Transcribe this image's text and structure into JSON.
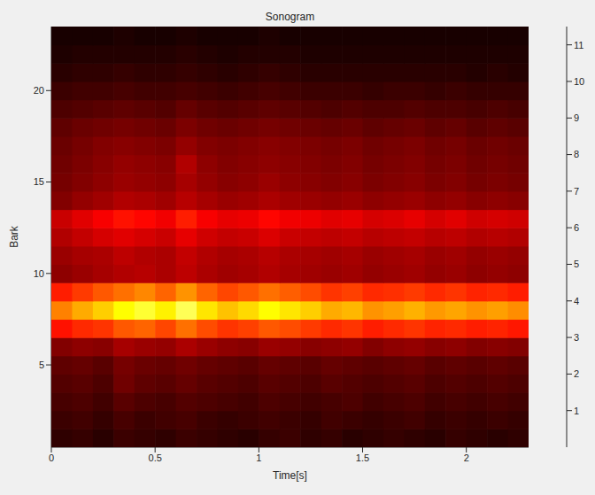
{
  "chart_data": {
    "type": "heatmap",
    "title": "Sonogram",
    "x_label": "Time[s]",
    "y_label": "Bark",
    "xlim": [
      0,
      2.3
    ],
    "xticks": [
      0,
      0.5,
      1,
      1.5,
      2
    ],
    "ylim": [
      0.5,
      23.5
    ],
    "yticks": [
      5,
      10,
      15,
      20
    ],
    "grid": false,
    "colorbar_lim": [
      0,
      11.5
    ],
    "colorbar_ticks": [
      1,
      2,
      3,
      4,
      5,
      6,
      7,
      8,
      9,
      10,
      11
    ],
    "x": [
      0.05,
      0.15,
      0.25,
      0.35,
      0.45,
      0.55,
      0.65,
      0.75,
      0.85,
      0.95,
      1.05,
      1.15,
      1.25,
      1.35,
      1.45,
      1.55,
      1.65,
      1.75,
      1.85,
      1.95,
      2.05,
      2.15,
      2.25
    ],
    "y": [
      1,
      2,
      3,
      4,
      5,
      6,
      7,
      8,
      9,
      10,
      11,
      12,
      13,
      14,
      15,
      16,
      17,
      18,
      19,
      20,
      21,
      22,
      23
    ],
    "z": [
      [
        0.8,
        0.9,
        0.7,
        1.0,
        0.9,
        0.8,
        1.0,
        0.9,
        0.8,
        0.7,
        0.9,
        1.0,
        0.8,
        0.9,
        0.7,
        0.8,
        0.9,
        0.8,
        0.7,
        0.9,
        0.8,
        0.7,
        0.8
      ],
      [
        1.0,
        1.1,
        0.9,
        1.2,
        1.0,
        1.1,
        1.2,
        1.0,
        0.9,
        1.0,
        1.1,
        1.0,
        0.9,
        1.1,
        1.0,
        0.9,
        1.0,
        1.1,
        0.9,
        1.0,
        0.9,
        1.0,
        0.9
      ],
      [
        1.2,
        1.3,
        1.1,
        1.5,
        1.3,
        1.2,
        1.4,
        1.3,
        1.2,
        1.1,
        1.3,
        1.2,
        1.1,
        1.2,
        1.3,
        1.1,
        1.2,
        1.3,
        1.1,
        1.2,
        1.1,
        1.2,
        1.1
      ],
      [
        1.4,
        1.5,
        1.3,
        1.9,
        1.6,
        1.5,
        1.7,
        1.5,
        1.4,
        1.3,
        1.5,
        1.4,
        1.3,
        1.5,
        1.4,
        1.3,
        1.4,
        1.5,
        1.3,
        1.4,
        1.3,
        1.4,
        1.3
      ],
      [
        1.6,
        1.7,
        1.5,
        2.0,
        1.8,
        1.7,
        1.9,
        1.7,
        1.6,
        1.5,
        1.7,
        1.6,
        1.5,
        1.7,
        1.6,
        1.5,
        1.6,
        1.7,
        1.5,
        1.6,
        1.5,
        1.6,
        1.5
      ],
      [
        2.2,
        2.4,
        2.3,
        2.8,
        2.6,
        2.5,
        2.9,
        2.6,
        2.4,
        2.3,
        2.6,
        2.5,
        2.3,
        2.4,
        2.5,
        2.2,
        2.4,
        2.5,
        2.3,
        2.4,
        2.2,
        2.3,
        2.2
      ],
      [
        4.6,
        5.0,
        5.2,
        5.8,
        6.0,
        5.5,
        6.2,
        5.6,
        5.2,
        5.4,
        5.8,
        5.6,
        5.3,
        5.0,
        5.2,
        4.8,
        5.0,
        5.2,
        4.9,
        5.0,
        4.8,
        4.9,
        4.7
      ],
      [
        6.5,
        7.2,
        7.8,
        8.6,
        9.2,
        8.4,
        9.6,
        8.2,
        7.6,
        8.0,
        8.6,
        8.2,
        7.8,
        7.2,
        7.4,
        6.8,
        7.0,
        7.3,
        6.9,
        7.1,
        6.8,
        7.0,
        6.7
      ],
      [
        4.8,
        5.3,
        5.8,
        6.2,
        6.6,
        6.0,
        6.8,
        6.0,
        5.5,
        5.8,
        6.2,
        5.9,
        5.6,
        5.2,
        5.4,
        5.0,
        5.1,
        5.3,
        5.0,
        5.2,
        4.9,
        5.0,
        4.8
      ],
      [
        2.4,
        2.6,
        2.8,
        3.0,
        3.1,
        2.9,
        3.2,
        2.9,
        2.7,
        2.8,
        3.0,
        2.8,
        2.7,
        2.6,
        2.7,
        2.5,
        2.6,
        2.7,
        2.5,
        2.6,
        2.4,
        2.5,
        2.4
      ],
      [
        2.6,
        2.8,
        2.9,
        3.2,
        3.0,
        2.9,
        3.3,
        3.0,
        2.8,
        2.9,
        3.1,
        2.9,
        2.8,
        2.7,
        2.8,
        2.6,
        2.7,
        2.8,
        2.6,
        2.7,
        2.5,
        2.6,
        2.5
      ],
      [
        3.0,
        3.3,
        3.6,
        3.8,
        3.6,
        3.4,
        3.9,
        3.5,
        3.3,
        3.4,
        3.7,
        3.4,
        3.3,
        3.2,
        3.3,
        3.1,
        3.2,
        3.3,
        3.1,
        3.2,
        3.0,
        3.1,
        3.0
      ],
      [
        3.4,
        3.8,
        4.2,
        4.6,
        4.4,
        4.1,
        4.8,
        4.2,
        3.9,
        4.0,
        4.4,
        4.1,
        4.0,
        3.8,
        3.9,
        3.6,
        3.7,
        3.9,
        3.6,
        3.8,
        3.5,
        3.6,
        3.5
      ],
      [
        2.2,
        2.5,
        2.7,
        3.0,
        2.9,
        2.7,
        3.1,
        2.8,
        2.6,
        2.7,
        2.9,
        2.7,
        2.6,
        2.5,
        2.6,
        2.4,
        2.5,
        2.6,
        2.4,
        2.5,
        2.3,
        2.4,
        2.3
      ],
      [
        2.0,
        2.2,
        2.4,
        2.6,
        2.5,
        2.4,
        2.8,
        2.5,
        2.3,
        2.4,
        2.6,
        2.4,
        2.3,
        2.2,
        2.3,
        2.1,
        2.2,
        2.3,
        2.1,
        2.2,
        2.0,
        2.1,
        2.0
      ],
      [
        1.9,
        2.1,
        2.3,
        2.5,
        2.4,
        2.3,
        3.0,
        2.4,
        2.2,
        2.3,
        2.4,
        2.3,
        2.2,
        2.1,
        2.2,
        2.0,
        2.1,
        2.2,
        2.0,
        2.1,
        1.9,
        2.0,
        1.9
      ],
      [
        1.8,
        2.0,
        2.2,
        2.3,
        2.2,
        2.1,
        2.5,
        2.2,
        2.1,
        2.2,
        2.3,
        2.2,
        2.1,
        2.0,
        2.1,
        1.9,
        2.0,
        2.1,
        1.9,
        2.0,
        1.8,
        1.9,
        1.8
      ],
      [
        1.6,
        1.8,
        1.9,
        2.0,
        1.9,
        1.8,
        2.1,
        1.9,
        1.8,
        1.9,
        2.0,
        1.9,
        1.8,
        1.7,
        1.8,
        1.6,
        1.7,
        1.8,
        1.6,
        1.7,
        1.5,
        1.6,
        1.5
      ],
      [
        1.3,
        1.4,
        1.5,
        1.6,
        1.5,
        1.4,
        1.7,
        1.5,
        1.4,
        1.5,
        1.6,
        1.5,
        1.4,
        1.3,
        1.4,
        1.3,
        1.3,
        1.4,
        1.3,
        1.3,
        1.2,
        1.3,
        1.2
      ],
      [
        1.0,
        1.1,
        1.1,
        1.2,
        1.1,
        1.1,
        1.2,
        1.1,
        1.0,
        1.1,
        1.2,
        1.1,
        1.0,
        1.0,
        1.0,
        0.9,
        1.0,
        1.0,
        0.9,
        1.0,
        0.9,
        0.9,
        0.9
      ],
      [
        0.7,
        0.8,
        0.8,
        0.9,
        0.8,
        0.8,
        0.9,
        0.8,
        0.7,
        0.8,
        0.9,
        0.8,
        0.7,
        0.7,
        0.7,
        0.7,
        0.7,
        0.7,
        0.7,
        0.7,
        0.6,
        0.7,
        0.6
      ],
      [
        0.5,
        0.6,
        0.6,
        0.6,
        0.6,
        0.6,
        0.7,
        0.6,
        0.5,
        0.6,
        0.6,
        0.6,
        0.5,
        0.5,
        0.5,
        0.5,
        0.5,
        0.5,
        0.5,
        0.5,
        0.5,
        0.5,
        0.5
      ],
      [
        0.4,
        0.4,
        0.4,
        0.5,
        0.4,
        0.4,
        0.5,
        0.4,
        0.4,
        0.4,
        0.5,
        0.4,
        0.4,
        0.4,
        0.4,
        0.4,
        0.4,
        0.4,
        0.4,
        0.4,
        0.4,
        0.4,
        0.4
      ]
    ]
  }
}
